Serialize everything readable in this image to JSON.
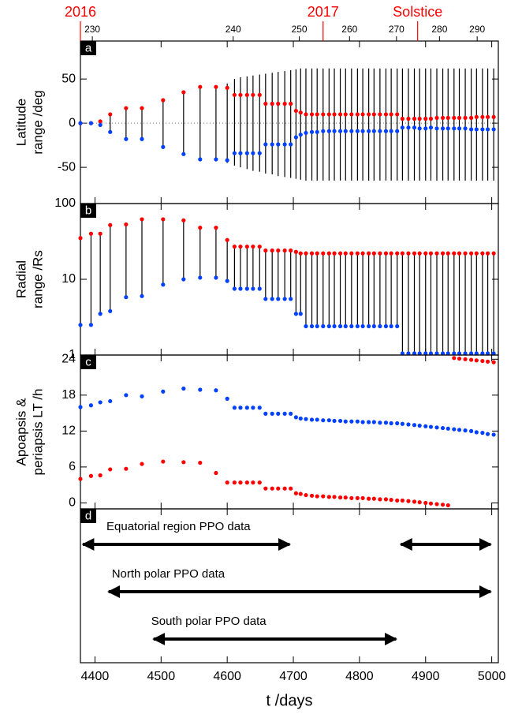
{
  "time_axis": {
    "xlabel": "t /days",
    "xlim": [
      4378,
      5010
    ],
    "xticks": [
      4400,
      4500,
      4600,
      4700,
      4800,
      4900,
      5000
    ],
    "year_color": "#ff0000",
    "year_ticks": [
      {
        "value": 4378,
        "label": "2016"
      },
      {
        "value": 4745,
        "label": "2017"
      },
      {
        "value": 4888,
        "label": "Solstice"
      }
    ],
    "orbit_ticks": [
      {
        "value": 4396,
        "label": "230"
      },
      {
        "value": 4609,
        "label": "240"
      },
      {
        "value": 4709,
        "label": "250"
      },
      {
        "value": 4785,
        "label": "260"
      },
      {
        "value": 4856,
        "label": "270"
      },
      {
        "value": 4921,
        "label": "280"
      },
      {
        "value": 4978,
        "label": "290"
      }
    ],
    "x": [
      4378,
      4394,
      4408,
      4423,
      4447,
      4471,
      4503,
      4534,
      4559,
      4583,
      4600,
      4611,
      4620,
      4630,
      4639,
      4649,
      4658,
      4668,
      4677,
      4687,
      4696,
      4704,
      4711,
      4719,
      4728,
      4736,
      4745,
      4754,
      4762,
      4771,
      4779,
      4788,
      4797,
      4805,
      4814,
      4822,
      4831,
      4840,
      4848,
      4857,
      4865,
      4874,
      4883,
      4891,
      4900,
      4908,
      4917,
      4926,
      4934,
      4943,
      4951,
      4960,
      4969,
      4977,
      4986,
      4994,
      5003
    ]
  },
  "chart_data": [
    {
      "type": "dot-range",
      "panel_label": "a",
      "ylabel": [
        "Latitude",
        "range /deg"
      ],
      "ylim": [
        -91,
        93
      ],
      "yticks": [
        -50,
        0,
        50
      ],
      "zero_line": true,
      "series": [
        {
          "color": "#ff0000",
          "values": [
            0,
            0,
            2,
            10,
            17,
            17,
            26,
            35,
            41,
            41,
            40,
            32,
            32,
            32,
            32,
            32,
            22,
            22,
            22,
            22,
            22,
            14,
            12,
            10,
            10,
            10,
            10,
            10,
            10,
            10,
            10,
            10,
            10,
            10,
            10,
            10,
            10,
            10,
            10,
            10,
            5,
            5,
            5,
            5,
            5,
            5,
            6,
            6,
            6,
            6,
            6,
            6,
            6,
            7,
            7,
            7,
            7
          ]
        },
        {
          "color": "#0040ff",
          "values": [
            0,
            0,
            -2,
            -10,
            -18,
            -18,
            -27,
            -35,
            -41,
            -41,
            -42,
            -34,
            -34,
            -34,
            -34,
            -34,
            -24,
            -24,
            -24,
            -24,
            -24,
            -16,
            -13,
            -11,
            -10,
            -10,
            -9,
            -9,
            -9,
            -9,
            -9,
            -9,
            -9,
            -9,
            -9,
            -9,
            -9,
            -9,
            -9,
            -9,
            -5,
            -5,
            -5,
            -6,
            -6,
            -5,
            -6,
            -6,
            -6,
            -6,
            -6,
            -6,
            -7,
            -7,
            -7,
            -7,
            -7
          ]
        }
      ],
      "ranges": {
        "color": "#000000",
        "low": [
          0,
          0,
          -2,
          -10,
          -18,
          -18,
          -27,
          -35,
          -41,
          -41,
          -45,
          -48,
          -50,
          -52,
          -54,
          -55,
          -57,
          -58,
          -60,
          -61,
          -62,
          -63,
          -64,
          -65,
          -65,
          -65,
          -65,
          -65,
          -65,
          -65,
          -65,
          -65,
          -65,
          -65,
          -65,
          -65,
          -65,
          -65,
          -65,
          -65,
          -65,
          -65,
          -65,
          -65,
          -65,
          -65,
          -65,
          -65,
          -65,
          -65,
          -65,
          -65,
          -65,
          -65,
          -65,
          -65,
          -65
        ],
        "high": [
          0,
          0,
          2,
          10,
          17,
          17,
          26,
          35,
          41,
          41,
          45,
          50,
          52,
          53,
          54,
          55,
          56,
          57,
          58,
          59,
          60,
          61,
          62,
          62,
          62,
          62,
          62,
          62,
          62,
          62,
          62,
          62,
          62,
          62,
          62,
          62,
          62,
          62,
          62,
          62,
          62,
          62,
          62,
          62,
          62,
          62,
          62,
          62,
          62,
          62,
          62,
          62,
          62,
          62,
          62,
          62,
          62
        ]
      }
    },
    {
      "type": "dot-link",
      "panel_label": "b",
      "ylabel": [
        "Radial",
        "range /Rs"
      ],
      "ylim": [
        1,
        100
      ],
      "yticks": [
        1,
        10,
        100
      ],
      "log": true,
      "link_color": "#000000",
      "series": [
        {
          "color": "#ff0000",
          "values": [
            35,
            40,
            40,
            52,
            53,
            62,
            62,
            60,
            48,
            48,
            33,
            27,
            27,
            27,
            27,
            27,
            24,
            24,
            24,
            24,
            24,
            23,
            22,
            22,
            22,
            22,
            22,
            22,
            22,
            22,
            22,
            22,
            22,
            22,
            22,
            22,
            22,
            22,
            22,
            22,
            22,
            22,
            22,
            22,
            22,
            22,
            22,
            22,
            22,
            22,
            22,
            22,
            22,
            22,
            22,
            22,
            22
          ]
        },
        {
          "color": "#0040ff",
          "values": [
            2.5,
            2.5,
            3.5,
            3.8,
            5.8,
            6,
            8.5,
            10,
            10.5,
            10.5,
            9.5,
            7.5,
            7.5,
            7.5,
            7.5,
            7.5,
            5.5,
            5.5,
            5.5,
            5.5,
            5.5,
            3.5,
            3.5,
            2.4,
            2.4,
            2.4,
            2.4,
            2.4,
            2.4,
            2.4,
            2.4,
            2.4,
            2.4,
            2.4,
            2.4,
            2.4,
            2.4,
            2.4,
            2.4,
            2.4,
            1.05,
            1.05,
            1.05,
            1.05,
            1.05,
            1.05,
            1.05,
            1.05,
            1.05,
            1.05,
            1.05,
            1.05,
            1.05,
            1.05,
            1.05,
            1.05,
            1.05
          ]
        }
      ]
    },
    {
      "type": "dots",
      "panel_label": "c",
      "ylabel": [
        "Apoapsis &",
        "periapsis LT /h"
      ],
      "ylim": [
        -1,
        24.7
      ],
      "yticks": [
        0,
        6,
        12,
        18,
        24
      ],
      "series": [
        {
          "color": "#0040ff",
          "values": [
            16,
            16.3,
            16.8,
            17,
            18,
            17.8,
            18.6,
            19.1,
            18.9,
            18.8,
            17.4,
            15.9,
            15.9,
            15.9,
            15.9,
            15.9,
            14.9,
            14.9,
            14.9,
            14.9,
            14.9,
            14.3,
            14.1,
            14.0,
            13.9,
            13.9,
            13.8,
            13.8,
            13.7,
            13.7,
            13.6,
            13.6,
            13.6,
            13.5,
            13.5,
            13.5,
            13.4,
            13.4,
            13.3,
            13.3,
            13.2,
            13.1,
            13.0,
            12.9,
            12.8,
            12.7,
            12.6,
            12.5,
            12.4,
            12.3,
            12.2,
            12.1,
            12.0,
            11.8,
            11.7,
            11.5,
            11.4
          ]
        },
        {
          "color": "#ff0000",
          "values": [
            4,
            4.5,
            4.6,
            5.6,
            5.7,
            6.5,
            6.9,
            6.8,
            6.7,
            5.0,
            3.4,
            3.4,
            3.4,
            3.4,
            3.4,
            3.4,
            2.4,
            2.4,
            2.4,
            2.4,
            2.4,
            1.6,
            1.5,
            1.3,
            1.2,
            1.1,
            1.1,
            1.0,
            1.0,
            0.9,
            0.9,
            0.8,
            0.8,
            0.8,
            0.7,
            0.7,
            0.6,
            0.6,
            0.5,
            0.4,
            0.4,
            0.3,
            0.2,
            0.1,
            0,
            -0.1,
            -0.2,
            -0.3,
            -0.4,
            24.2,
            24.1,
            24.0,
            23.9,
            23.8,
            23.7,
            23.6,
            23.5
          ]
        }
      ]
    },
    {
      "type": "arrows",
      "panel_label": "d",
      "color": "#000000",
      "arrows": [
        {
          "label": "Equatorial region PPO data",
          "start": 4378,
          "end": 4698
        },
        {
          "start": 4859,
          "end": 5002
        },
        {
          "label": "North polar PPO data",
          "start": 4417,
          "end": 5002
        },
        {
          "label": "South polar PPO data",
          "start": 4485,
          "end": 4859
        }
      ]
    }
  ]
}
